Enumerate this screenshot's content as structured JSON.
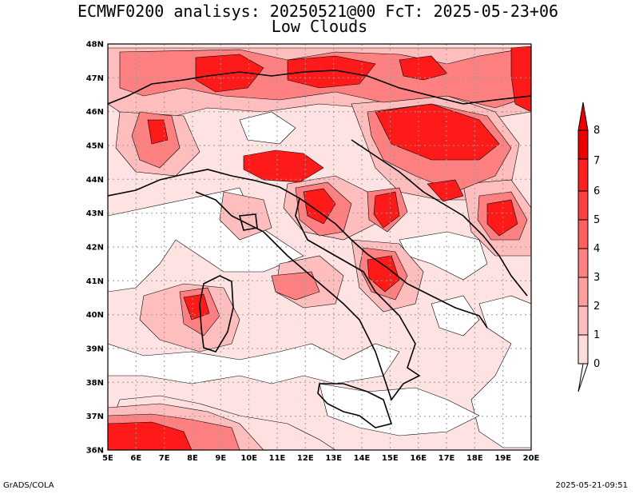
{
  "header": {
    "title": "ECMWF0200 analisys: 20250521@00 FcT: 2025-05-23+06",
    "subtitle": "Low Clouds"
  },
  "footer": {
    "left": "GrADS/COLA",
    "right": "2025-05-21-09:51"
  },
  "map": {
    "lon_range": [
      5,
      20
    ],
    "lat_range": [
      36,
      48
    ],
    "lon_ticks": [
      "5E",
      "6E",
      "7E",
      "8E",
      "9E",
      "10E",
      "11E",
      "12E",
      "13E",
      "14E",
      "15E",
      "16E",
      "17E",
      "18E",
      "19E",
      "20E"
    ],
    "lat_ticks": [
      "36N",
      "37N",
      "38N",
      "39N",
      "40N",
      "41N",
      "42N",
      "43N",
      "44N",
      "45N",
      "46N",
      "47N",
      "48N"
    ],
    "grid": "dotted"
  },
  "colorbar": {
    "levels": [
      "0",
      "1",
      "2",
      "3",
      "4",
      "5",
      "6",
      "7",
      "8"
    ],
    "colors": [
      "#ffffff",
      "#ffdcdc",
      "#ffbebe",
      "#ff9e9e",
      "#ff8080",
      "#ff6060",
      "#ff4040",
      "#ff2020",
      "#ee0000"
    ]
  }
}
